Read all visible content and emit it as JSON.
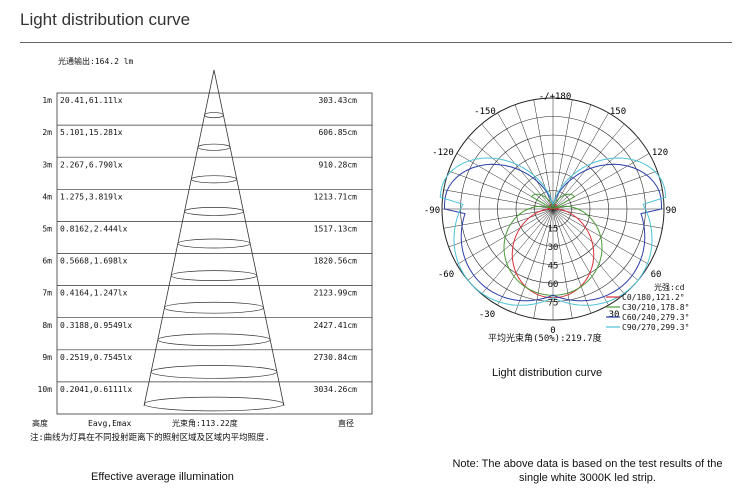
{
  "page_title": "Light distribution curve",
  "illuminance": {
    "flux_label": "光通输出:164.2 lm",
    "rows": [
      {
        "height": "1m",
        "values": "20.41,61.11lx",
        "diameter": "303.43cm"
      },
      {
        "height": "2m",
        "values": "5.101,15.281x",
        "diameter": "606.85cm"
      },
      {
        "height": "3m",
        "values": "2.267,6.790lx",
        "diameter": "910.28cm"
      },
      {
        "height": "4m",
        "values": "1.275,3.819lx",
        "diameter": "1213.71cm"
      },
      {
        "height": "5m",
        "values": "0.8162,2.444lx",
        "diameter": "1517.13cm"
      },
      {
        "height": "6m",
        "values": "0.5668,1.698lx",
        "diameter": "1820.56cm"
      },
      {
        "height": "7m",
        "values": "0.4164,1.247lx",
        "diameter": "2123.99cm"
      },
      {
        "height": "8m",
        "values": "0.3188,0.9549lx",
        "diameter": "2427.41cm"
      },
      {
        "height": "9m",
        "values": "0.2519,0.7545lx",
        "diameter": "2730.84cm"
      },
      {
        "height": "10m",
        "values": "0.2041,0.6111lx",
        "diameter": "3034.26cm"
      }
    ],
    "footer": {
      "height": "高度",
      "eavg": "Eavg,Emax",
      "beam_angle": "光束角:113.22度",
      "diameter": "直径"
    },
    "note": "注:曲线为灯具在不同投射距离下的照射区域及区域内平均照度.",
    "caption": "Effective average illumination"
  },
  "polar": {
    "angle_labels": {
      "top": "-/+180",
      "n150": "-150",
      "p150": "150",
      "n120": "-120",
      "p120": "120",
      "n90": "-90",
      "p90": "90",
      "n60": "-60",
      "p60": "60",
      "n30": "-30",
      "p30": "30",
      "bottom": "0"
    },
    "radial_labels": [
      "15",
      "30",
      "45",
      "60",
      "75"
    ],
    "unit_label": "光强:cd",
    "legend": [
      {
        "label": "C0/180,121.2°",
        "color": "#d9303a"
      },
      {
        "label": "C30/210,178.8°",
        "color": "#4a9b3a"
      },
      {
        "label": "C60/240,279.3°",
        "color": "#2a3fa8"
      },
      {
        "label": "C90/270,299.3°",
        "color": "#4fc3d8"
      }
    ],
    "beam_average": "平均光束角(50%):219.7度",
    "caption": "Light distribution curve"
  },
  "footnote": "Note: The above data is based on the test results of the single white 3000K led strip."
}
